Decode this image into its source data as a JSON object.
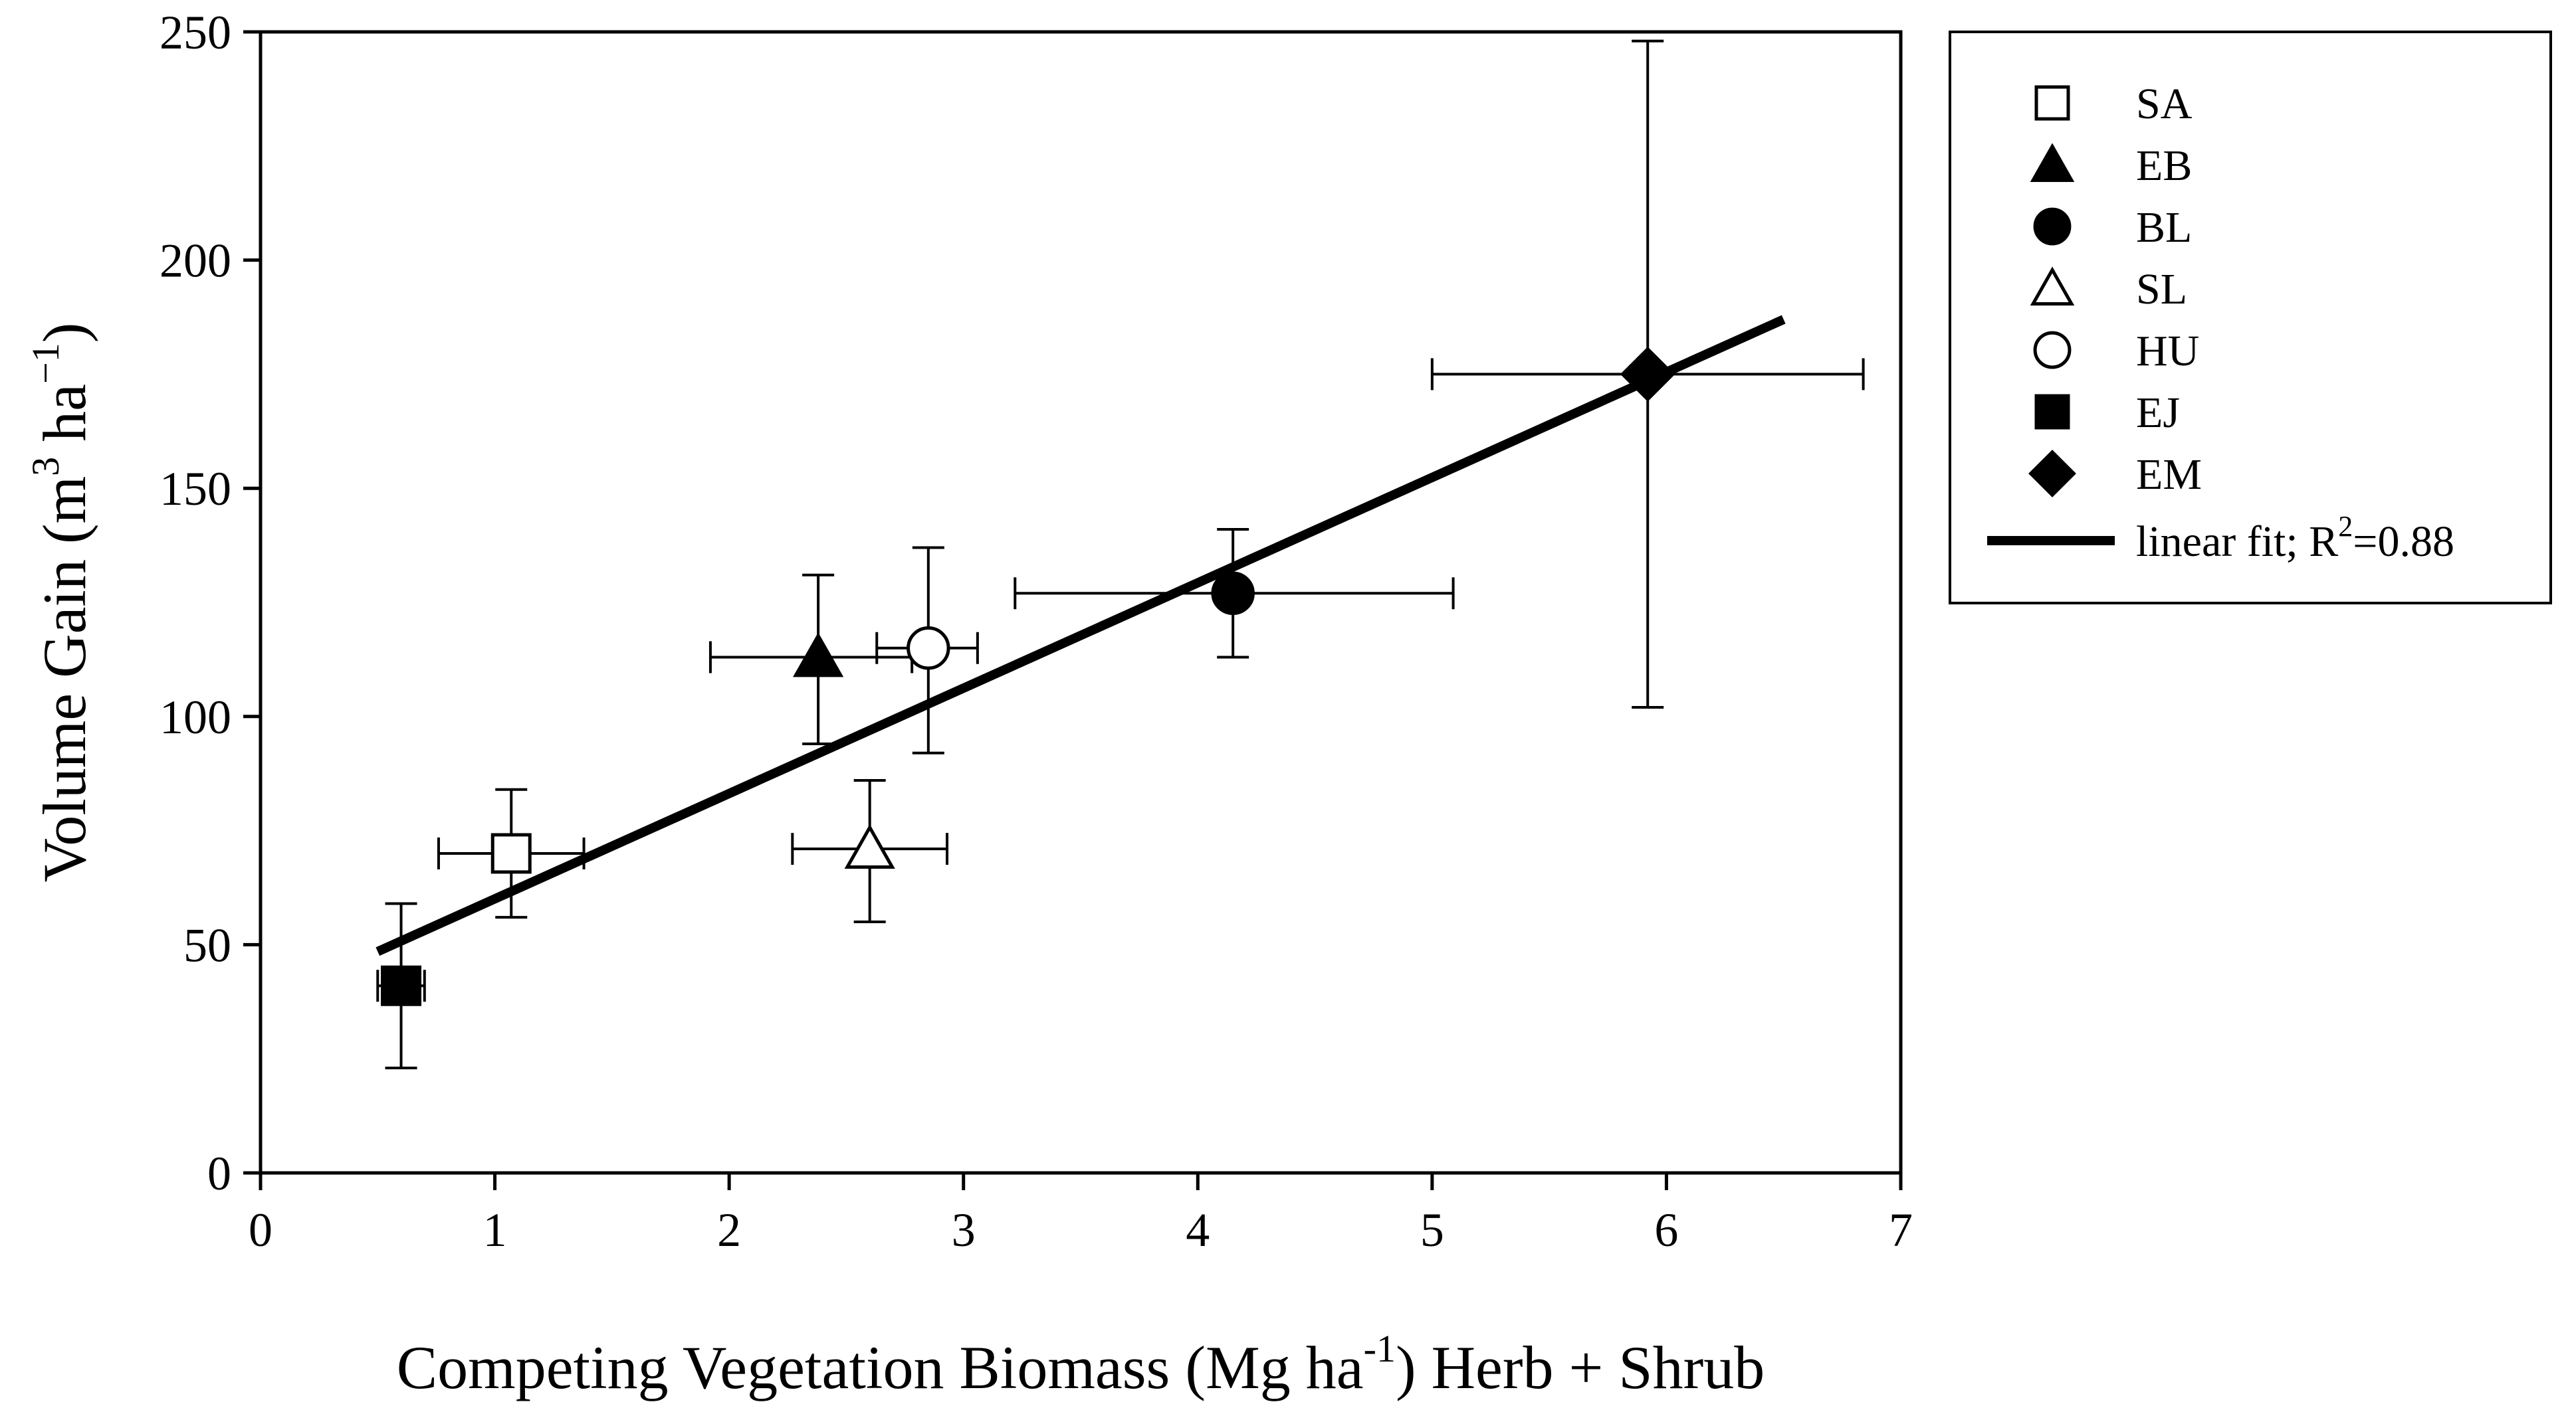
{
  "chart_data": {
    "type": "scatter",
    "title": "",
    "xlabel": "Competing Vegetation Biomass (Mg ha-1) Herb + Shrub",
    "xlabel_parts": {
      "main": "Competing Vegetation Biomass (Mg ha",
      "sup": "-1",
      "tail": ") Herb + Shrub"
    },
    "ylabel": "Volume Gain (m3 ha-1)",
    "ylabel_parts": {
      "main": "Volume Gain (m",
      "sup1": "3",
      "mid": " ha",
      "sup2": "−1",
      "tail": ")"
    },
    "xlim": [
      0,
      7
    ],
    "ylim": [
      0,
      250
    ],
    "xticks": [
      0,
      1,
      2,
      3,
      4,
      5,
      6,
      7
    ],
    "yticks": [
      0,
      50,
      100,
      150,
      200,
      250
    ],
    "grid": false,
    "legend_position": "outside-right",
    "series": [
      {
        "name": "SA",
        "marker": "square-open",
        "x": 1.07,
        "y": 70,
        "xerr": [
          0.76,
          1.38
        ],
        "yerr": [
          56,
          84
        ]
      },
      {
        "name": "EB",
        "marker": "triangle-filled",
        "x": 2.38,
        "y": 113,
        "xerr": [
          1.92,
          2.78
        ],
        "yerr": [
          94,
          131
        ]
      },
      {
        "name": "BL",
        "marker": "circle-filled",
        "x": 4.15,
        "y": 127,
        "xerr": [
          3.22,
          5.09
        ],
        "yerr": [
          113,
          141
        ]
      },
      {
        "name": "SL",
        "marker": "triangle-open",
        "x": 2.6,
        "y": 71,
        "xerr": [
          2.27,
          2.93
        ],
        "yerr": [
          55,
          86
        ]
      },
      {
        "name": "HU",
        "marker": "circle-open",
        "x": 2.85,
        "y": 115,
        "xerr": [
          2.63,
          3.06
        ],
        "yerr": [
          92,
          137
        ]
      },
      {
        "name": "EJ",
        "marker": "square-filled",
        "x": 0.6,
        "y": 41,
        "xerr": [
          0.5,
          0.7
        ],
        "yerr": [
          23,
          59
        ]
      },
      {
        "name": "EM",
        "marker": "diamond-filled",
        "x": 5.92,
        "y": 175,
        "xerr": [
          5.0,
          6.84
        ],
        "yerr": [
          102,
          248
        ]
      }
    ],
    "fit": {
      "label_main": "linear fit; R",
      "label_sup": "2",
      "label_tail": "=0.88",
      "r2": 0.88,
      "x": [
        0.5,
        6.5
      ],
      "y": [
        48.5,
        187
      ]
    }
  }
}
